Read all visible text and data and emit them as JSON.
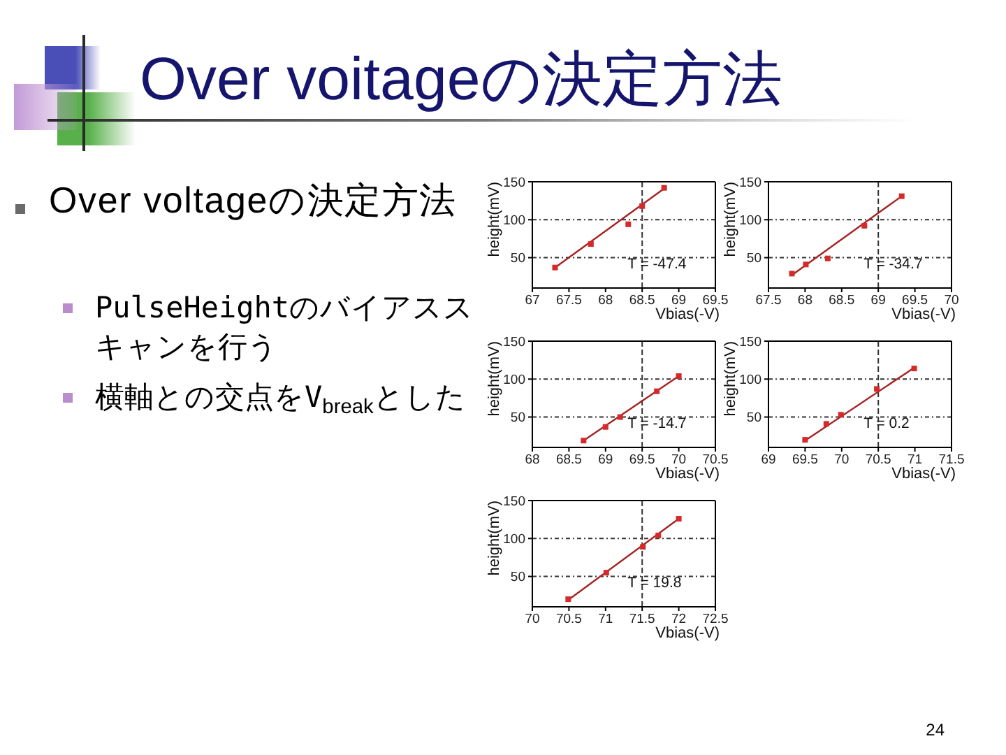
{
  "chart_data": [
    {
      "type": "other",
      "title": "Over voitageの決定方法",
      "subtitle": "Over voltageの決定方法",
      "annotations": [
        "PulseHeightのバイアススキャンを行う",
        "横軸との交点をV$_{break}$とした",
        "24"
      ]
    },
    {
      "type": "scatter",
      "xlabel": "Vbias(-V)",
      "ylabel": "height(mV)",
      "xlim": [
        67,
        69.5
      ],
      "xticks": [
        67,
        67.5,
        68,
        68.5,
        69,
        69.5
      ],
      "ylim": [
        10,
        150
      ],
      "yticks": [
        50,
        100,
        150
      ],
      "grid": "y",
      "marker": "square",
      "ref_lines": [
        {
          "axis": "x",
          "value": 68.5,
          "line_style": "dashed"
        }
      ],
      "annotations": [
        "T = -47.4"
      ],
      "series": [
        {
          "color": "#d42a2a",
          "x": [
            67.31,
            67.8,
            68.31,
            68.5,
            68.8
          ],
          "values": [
            37,
            68,
            94,
            118,
            142
          ]
        },
        {
          "type": "line",
          "marker": "none",
          "color": "#a52222",
          "x": [
            67.31,
            68.8
          ],
          "values": [
            37,
            141
          ]
        }
      ]
    },
    {
      "type": "scatter",
      "xlabel": "Vbias(-V)",
      "ylabel": "height(mV)",
      "xlim": [
        67.5,
        70
      ],
      "xticks": [
        67.5,
        68,
        68.5,
        69,
        69.5,
        70
      ],
      "ylim": [
        10,
        150
      ],
      "yticks": [
        50,
        100,
        150
      ],
      "grid": "y",
      "marker": "square",
      "ref_lines": [
        {
          "axis": "x",
          "value": 69,
          "line_style": "dashed"
        }
      ],
      "annotations": [
        "T = -34.7"
      ],
      "series": [
        {
          "color": "#d42a2a",
          "x": [
            67.82,
            68.01,
            68.31,
            68.81,
            69.32
          ],
          "values": [
            29,
            41,
            49,
            92,
            131
          ]
        },
        {
          "type": "line",
          "marker": "none",
          "color": "#a52222",
          "x": [
            67.82,
            69.32
          ],
          "values": [
            27,
            131
          ]
        }
      ]
    },
    {
      "type": "scatter",
      "xlabel": "Vbias(-V)",
      "ylabel": "height(mV)",
      "xlim": [
        68,
        70.5
      ],
      "xticks": [
        68,
        68.5,
        69,
        69.5,
        70,
        70.5
      ],
      "ylim": [
        10,
        150
      ],
      "yticks": [
        50,
        100,
        150
      ],
      "grid": "y",
      "marker": "square",
      "ref_lines": [
        {
          "axis": "x",
          "value": 69.5,
          "line_style": "dashed"
        }
      ],
      "annotations": [
        "T = -14.7"
      ],
      "series": [
        {
          "color": "#d42a2a",
          "x": [
            68.7,
            69.0,
            69.2,
            69.7,
            70.0
          ],
          "values": [
            19,
            37,
            50,
            84,
            104
          ]
        },
        {
          "type": "line",
          "marker": "none",
          "color": "#a52222",
          "x": [
            68.7,
            70.0
          ],
          "values": [
            19,
            104
          ]
        }
      ]
    },
    {
      "type": "scatter",
      "xlabel": "Vbias(-V)",
      "ylabel": "height(mV)",
      "xlim": [
        69,
        71.5
      ],
      "xticks": [
        69,
        69.5,
        70,
        70.5,
        71,
        71.5
      ],
      "ylim": [
        10,
        150
      ],
      "yticks": [
        50,
        100,
        150
      ],
      "grid": "y",
      "marker": "square",
      "ref_lines": [
        {
          "axis": "x",
          "value": 70.5,
          "line_style": "dashed"
        }
      ],
      "annotations": [
        "T = 0.2"
      ],
      "series": [
        {
          "color": "#d42a2a",
          "x": [
            69.5,
            69.79,
            69.99,
            70.48,
            70.99
          ],
          "values": [
            20,
            41,
            53,
            87,
            114
          ]
        },
        {
          "type": "line",
          "marker": "none",
          "color": "#a52222",
          "x": [
            69.5,
            70.99
          ],
          "values": [
            19,
            115
          ]
        }
      ]
    },
    {
      "type": "scatter",
      "xlabel": "Vbias(-V)",
      "ylabel": "height(mV)",
      "xlim": [
        70,
        72.5
      ],
      "xticks": [
        70,
        70.5,
        71,
        71.5,
        72,
        72.5
      ],
      "ylim": [
        10,
        150
      ],
      "yticks": [
        50,
        100,
        150
      ],
      "grid": "y",
      "marker": "square",
      "ref_lines": [
        {
          "axis": "x",
          "value": 71.5,
          "line_style": "dashed"
        }
      ],
      "annotations": [
        "T = 19.8"
      ],
      "series": [
        {
          "color": "#d42a2a",
          "x": [
            70.49,
            71.01,
            71.51,
            71.72,
            72.0
          ],
          "values": [
            20,
            55,
            89,
            104,
            126
          ]
        },
        {
          "type": "line",
          "marker": "none",
          "color": "#a52222",
          "x": [
            70.49,
            72.0
          ],
          "values": [
            19,
            126
          ]
        }
      ]
    }
  ]
}
